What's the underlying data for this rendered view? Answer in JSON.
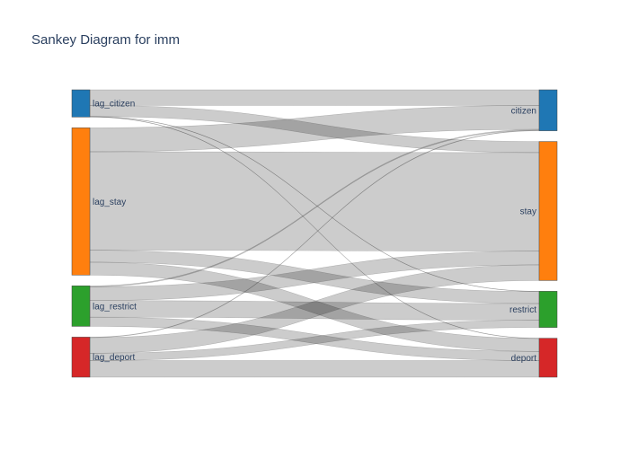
{
  "chart_data": {
    "type": "sankey",
    "title": "Sankey Diagram for imm",
    "sources": [
      {
        "id": "lag_citizen",
        "label": "lag_citizen",
        "color": "#1f77b4"
      },
      {
        "id": "lag_stay",
        "label": "lag_stay",
        "color": "#ff7f0e"
      },
      {
        "id": "lag_restrict",
        "label": "lag_restrict",
        "color": "#2ca02c"
      },
      {
        "id": "lag_deport",
        "label": "lag_deport",
        "color": "#d62728"
      }
    ],
    "targets": [
      {
        "id": "citizen",
        "label": "citizen",
        "color": "#1f77b4"
      },
      {
        "id": "stay",
        "label": "stay",
        "color": "#ff7f0e"
      },
      {
        "id": "restrict",
        "label": "restrict",
        "color": "#2ca02c"
      },
      {
        "id": "deport",
        "label": "deport",
        "color": "#d62728"
      }
    ],
    "links": [
      {
        "source": "lag_citizen",
        "target": "citizen",
        "value": 17
      },
      {
        "source": "lag_citizen",
        "target": "stay",
        "value": 12
      },
      {
        "source": "lag_citizen",
        "target": "restrict",
        "value": 0.3
      },
      {
        "source": "lag_citizen",
        "target": "deport",
        "value": 0.3
      },
      {
        "source": "lag_stay",
        "target": "citizen",
        "value": 26
      },
      {
        "source": "lag_stay",
        "target": "stay",
        "value": 107
      },
      {
        "source": "lag_stay",
        "target": "restrict",
        "value": 13
      },
      {
        "source": "lag_stay",
        "target": "deport",
        "value": 14
      },
      {
        "source": "lag_restrict",
        "target": "citizen",
        "value": 1
      },
      {
        "source": "lag_restrict",
        "target": "stay",
        "value": 15
      },
      {
        "source": "lag_restrict",
        "target": "restrict",
        "value": 18
      },
      {
        "source": "lag_restrict",
        "target": "deport",
        "value": 10
      },
      {
        "source": "lag_deport",
        "target": "citizen",
        "value": 0.5
      },
      {
        "source": "lag_deport",
        "target": "stay",
        "value": 17
      },
      {
        "source": "lag_deport",
        "target": "restrict",
        "value": 8
      },
      {
        "source": "lag_deport",
        "target": "deport",
        "value": 18
      }
    ],
    "link_color": "#000000",
    "link_opacity": 0.2
  }
}
